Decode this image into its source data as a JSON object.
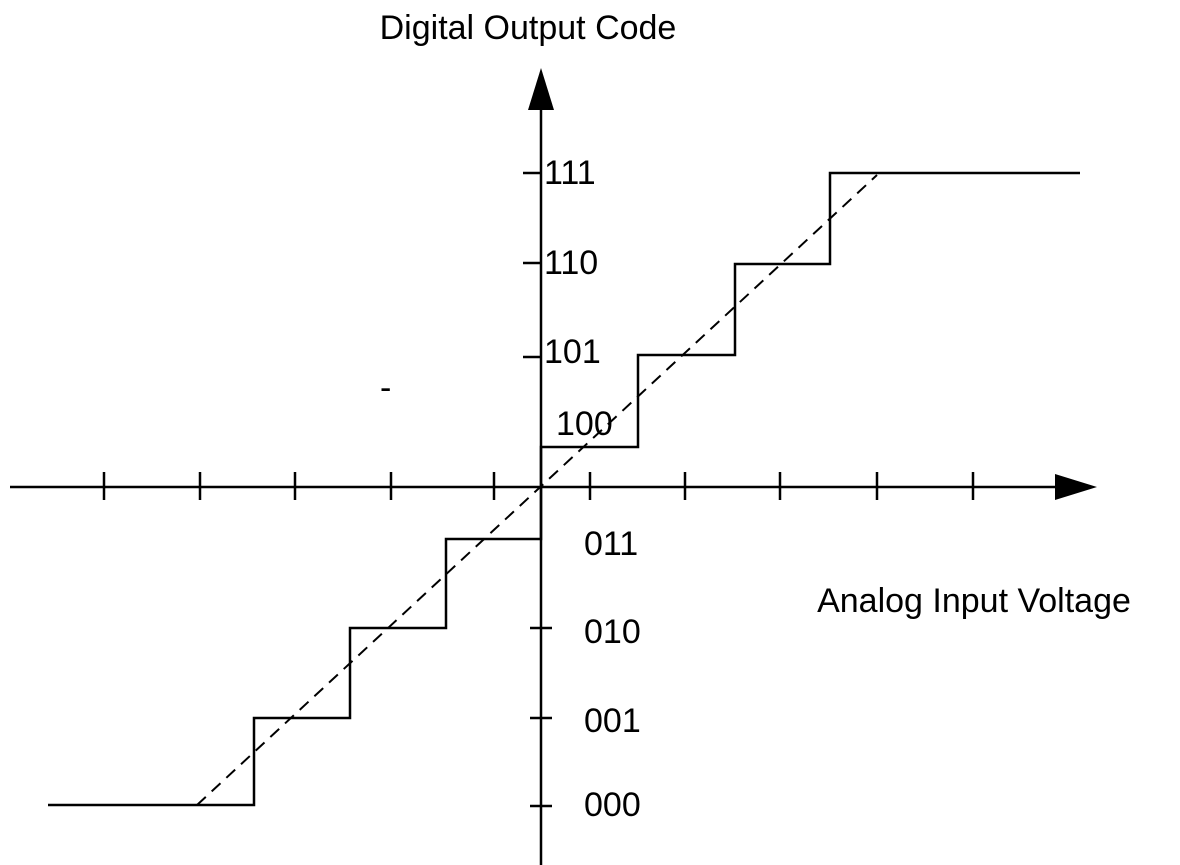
{
  "y_axis": {
    "title": "Digital Output Code"
  },
  "x_axis": {
    "title": "Analog Input Voltage"
  },
  "codes": [
    "111",
    "110",
    "101",
    "100",
    "011",
    "010",
    "001",
    "000"
  ],
  "stray_mark": "-"
}
